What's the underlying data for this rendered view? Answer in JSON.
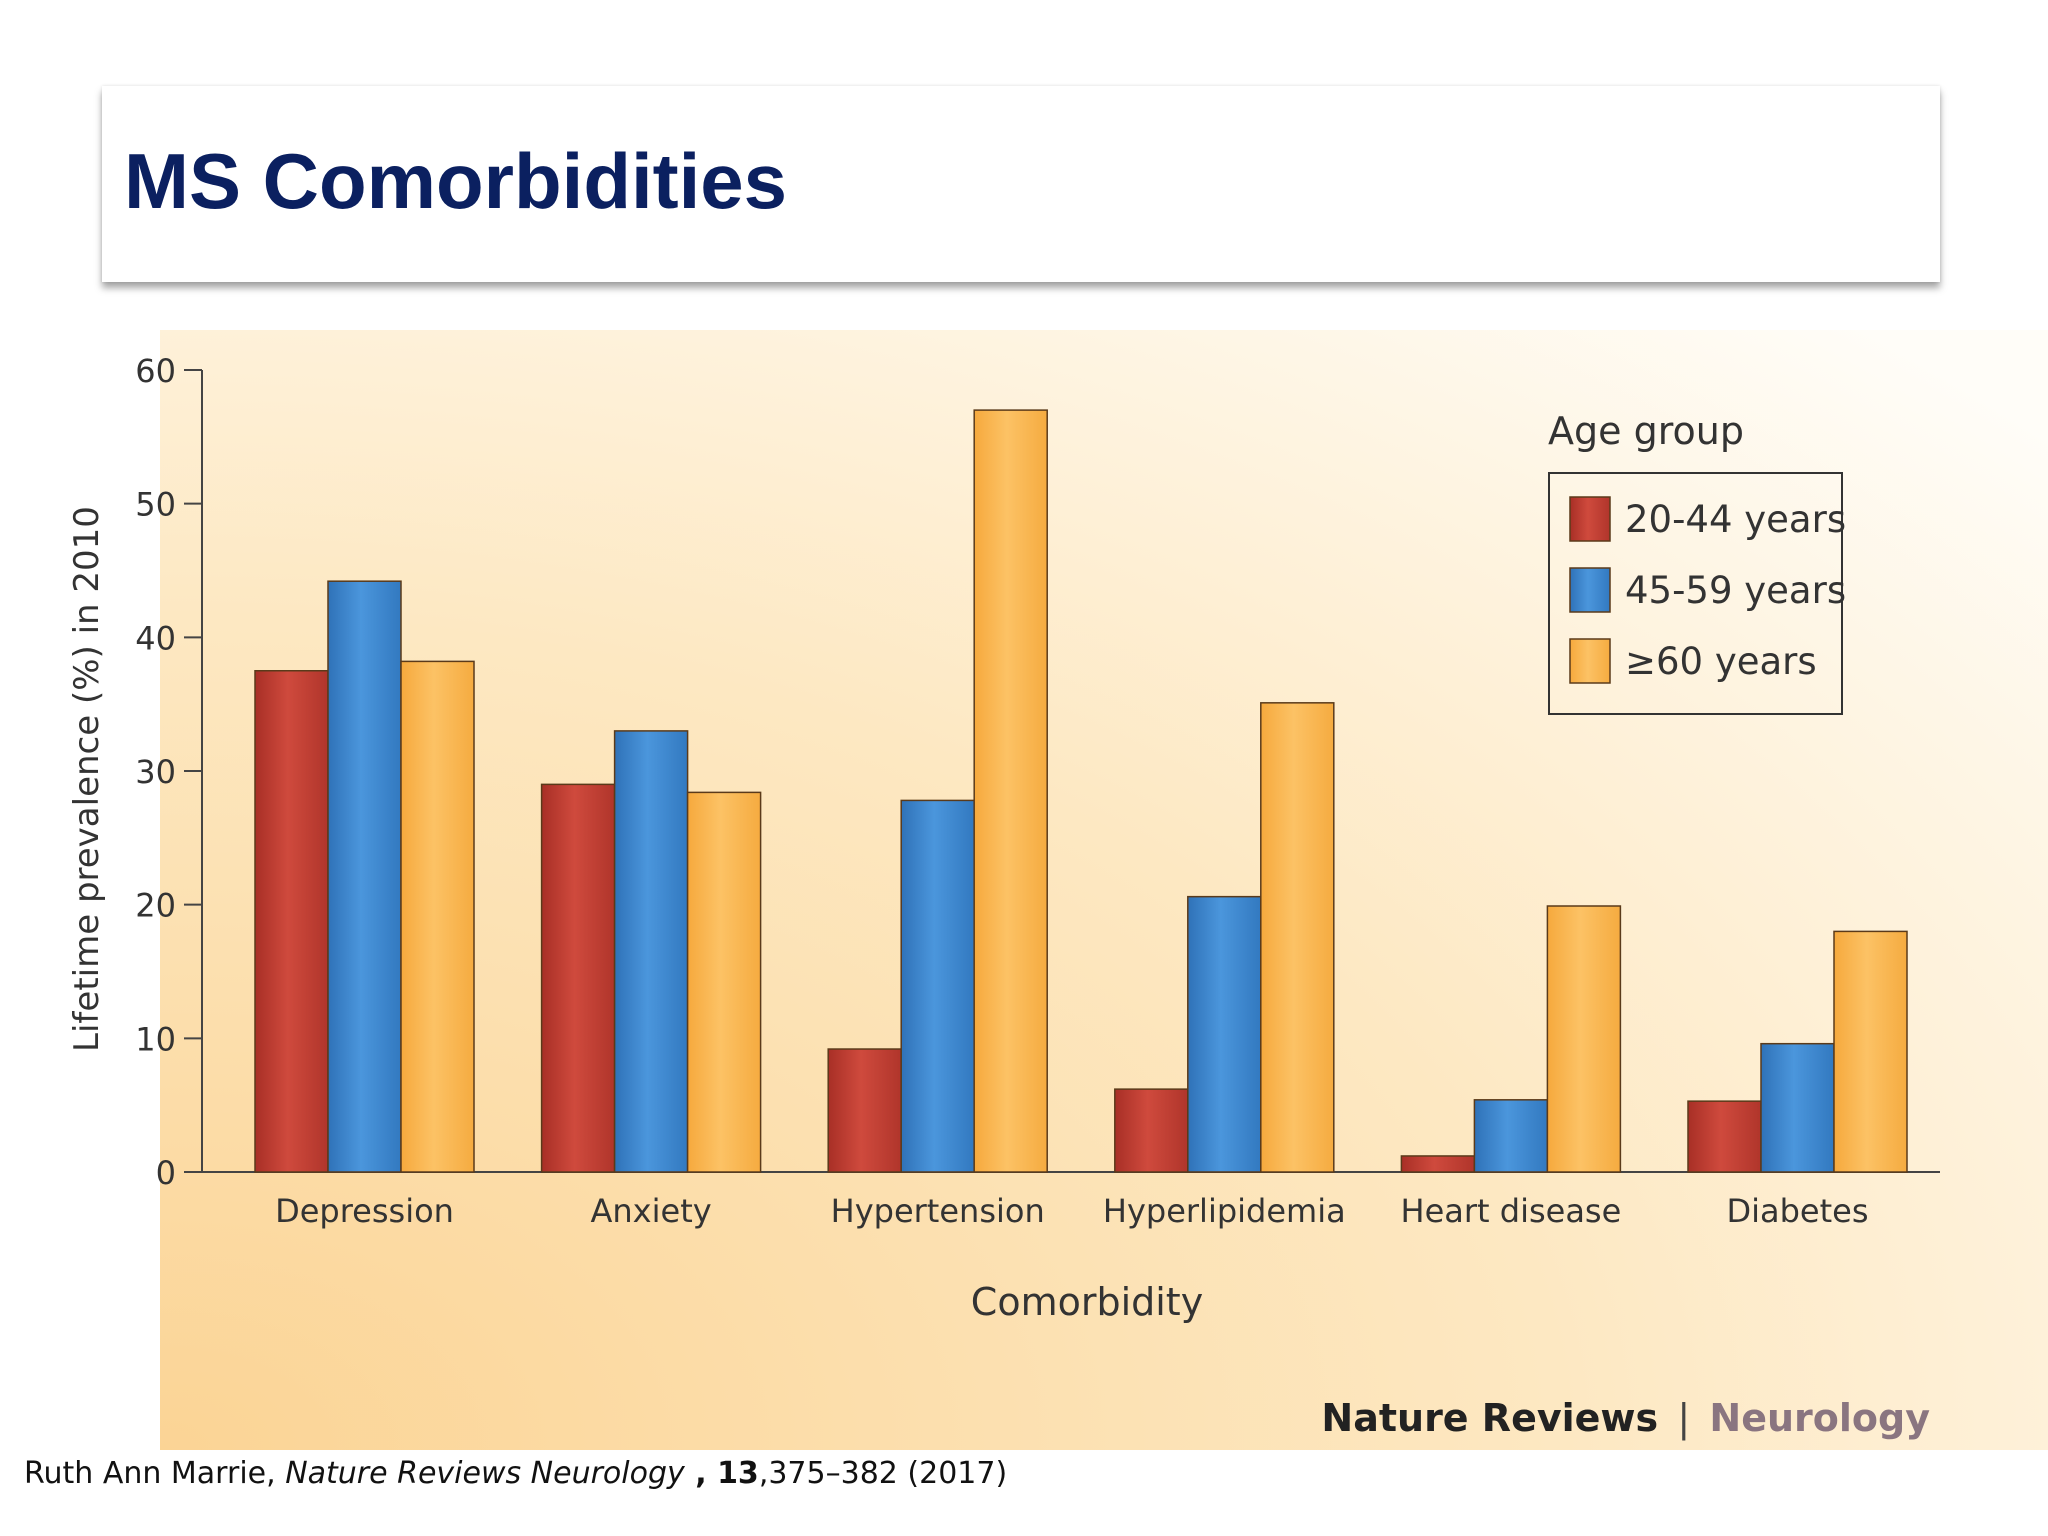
{
  "slide": {
    "title": "MS Comorbidities"
  },
  "chart_data": {
    "type": "bar",
    "title": "",
    "xlabel": "Comorbidity",
    "ylabel": "Lifetime prevalence (%) in 2010",
    "ylim": [
      0,
      60
    ],
    "yticks": [
      "0",
      "10",
      "20",
      "30",
      "40",
      "50",
      "60"
    ],
    "categories": [
      "Depression",
      "Anxiety",
      "Hypertension",
      "Hyperlipidemia",
      "Heart disease",
      "Diabetes"
    ],
    "legend_title": "Age group",
    "legend_position": "top-right",
    "series": [
      {
        "name": "20-44 years",
        "color": "#c0392f",
        "values": [
          37.5,
          29,
          9.2,
          6.2,
          1.2,
          5.3
        ]
      },
      {
        "name": "45-59 years",
        "color": "#3a86cf",
        "values": [
          44.2,
          33,
          27.8,
          20.6,
          5.4,
          9.6
        ]
      },
      {
        "name": "≥60 years",
        "color": "#fbb54c",
        "values": [
          38.2,
          28.4,
          57,
          35.1,
          19.9,
          18
        ]
      }
    ]
  },
  "source": {
    "brand_primary": "Nature Reviews",
    "brand_separator": "|",
    "brand_secondary": "Neurology"
  },
  "citation": {
    "author": "Ruth Ann Marrie, ",
    "journal": "Nature Reviews Neurology",
    "sep": " , ",
    "volume": "13",
    "pages_year": ",375–382 (2017)"
  }
}
